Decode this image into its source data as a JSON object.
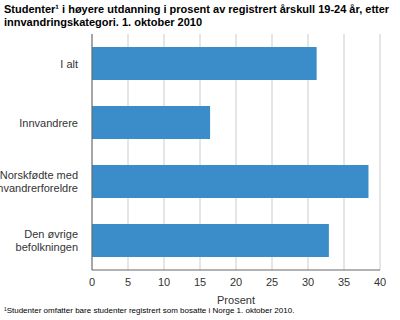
{
  "chart_data": {
    "type": "bar",
    "orientation": "horizontal",
    "title": "Studenter¹ i høyere utdanning i prosent av registrert årskull 19-24 år, etter innvandringskategori. 1. oktober 2010",
    "x_label": "Prosent",
    "categories": [
      "I alt",
      "Innvandrere",
      "Norskfødte med innvandrerforeldre",
      "Den øvrige befolkningen"
    ],
    "values": [
      31.2,
      16.4,
      38.4,
      32.9
    ],
    "color": "#3a8dc8",
    "xlim": [
      0,
      40
    ],
    "xticks": [
      0,
      5,
      10,
      15,
      20,
      25,
      30,
      35,
      40
    ],
    "grid": true,
    "annotations": [
      "¹Studenter omfatter bare studenter registrert som bosatte i Norge 1. oktober 2010."
    ]
  }
}
